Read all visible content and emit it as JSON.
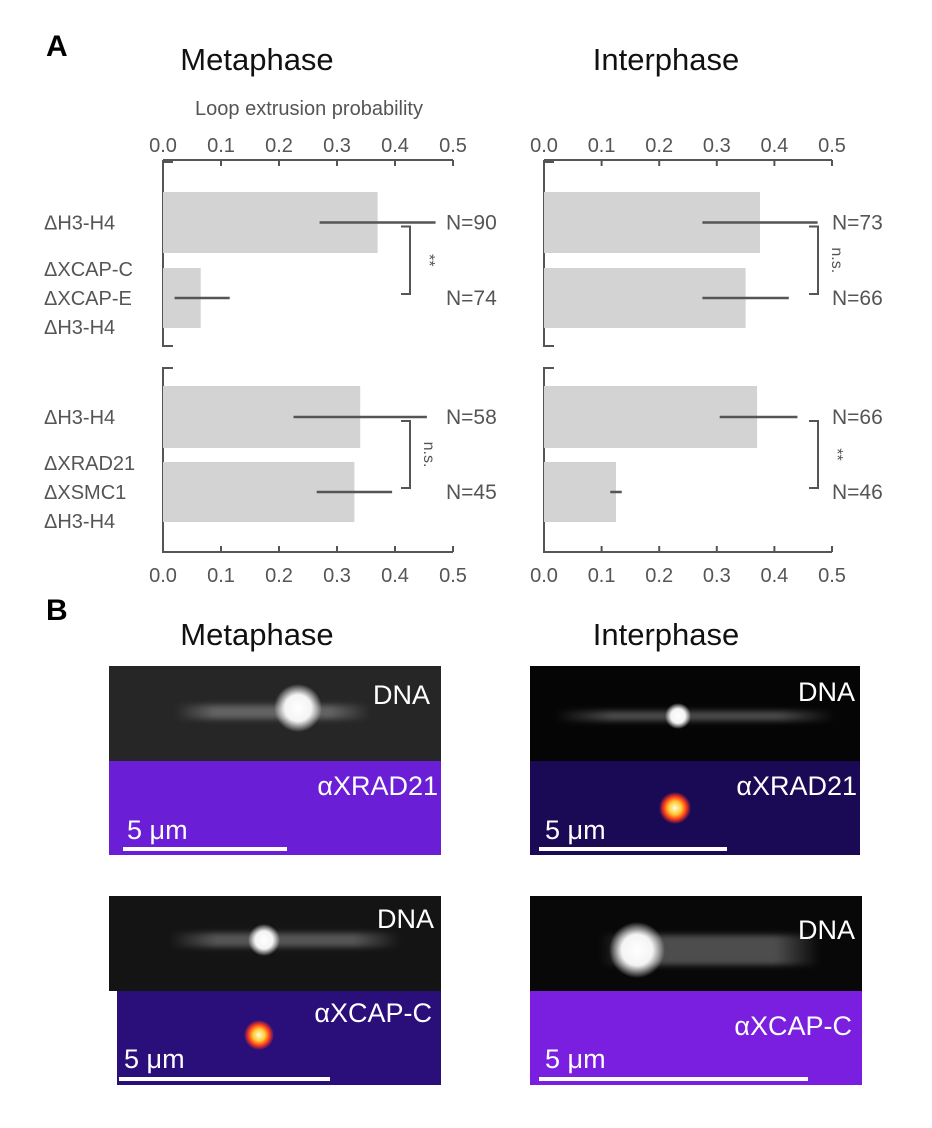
{
  "panel_a_letter": "A",
  "panel_b_letter": "B",
  "chart_data": {
    "type": "bar",
    "orientation": "horizontal",
    "xlabel": "Loop extrusion probability",
    "xlim": [
      0,
      0.5
    ],
    "ticks": [
      "0.0",
      "0.1",
      "0.2",
      "0.3",
      "0.4",
      "0.5"
    ],
    "columns": [
      {
        "title": "Metaphase",
        "groups": [
          {
            "significance": "**",
            "bars": [
              {
                "label": [
                  "ΔH3-H4"
                ],
                "value": 0.37,
                "err_low": 0.27,
                "err_high": 0.47,
                "n": "N=90"
              },
              {
                "label": [
                  "ΔXCAP-C",
                  "ΔXCAP-E",
                  "ΔH3-H4"
                ],
                "value": 0.065,
                "err_low": 0.02,
                "err_high": 0.115,
                "n": "N=74"
              }
            ]
          },
          {
            "significance": "n.s.",
            "bars": [
              {
                "label": [
                  "ΔH3-H4"
                ],
                "value": 0.34,
                "err_low": 0.225,
                "err_high": 0.455,
                "n": "N=58"
              },
              {
                "label": [
                  "ΔXRAD21",
                  "ΔXSMC1",
                  "ΔH3-H4"
                ],
                "value": 0.33,
                "err_low": 0.265,
                "err_high": 0.395,
                "n": "N=45"
              }
            ]
          }
        ]
      },
      {
        "title": "Interphase",
        "groups": [
          {
            "significance": "n.s.",
            "bars": [
              {
                "label": [
                  "ΔH3-H4"
                ],
                "value": 0.375,
                "err_low": 0.275,
                "err_high": 0.475,
                "n": "N=73"
              },
              {
                "label": [
                  "ΔXCAP-C",
                  "ΔXCAP-E",
                  "ΔH3-H4"
                ],
                "value": 0.35,
                "err_low": 0.275,
                "err_high": 0.425,
                "n": "N=66"
              }
            ]
          },
          {
            "significance": "**",
            "bars": [
              {
                "label": [
                  "ΔH3-H4"
                ],
                "value": 0.37,
                "err_low": 0.305,
                "err_high": 0.44,
                "n": "N=66"
              },
              {
                "label": [
                  "ΔXRAD21",
                  "ΔXSMC1",
                  "ΔH3-H4"
                ],
                "value": 0.125,
                "err_low": 0.115,
                "err_high": 0.135,
                "n": "N=46"
              }
            ]
          }
        ]
      }
    ]
  },
  "panel_b": {
    "titles": [
      "Metaphase",
      "Interphase"
    ],
    "images": [
      {
        "top_label": "DNA",
        "bottom_label": "αXRAD21",
        "scale": "5 μm",
        "bottom_color": "#6a1fd6"
      },
      {
        "top_label": "DNA",
        "bottom_label": "αXRAD21",
        "scale": "5 μm",
        "bottom_color": "#1a0a55"
      },
      {
        "top_label": "DNA",
        "bottom_label": "αXCAP-C",
        "scale": "5 μm",
        "bottom_color": "#2a0f7a"
      },
      {
        "top_label": "DNA",
        "bottom_label": "αXCAP-C",
        "scale": "5 μm",
        "bottom_color": "#7a1fe0"
      }
    ]
  }
}
